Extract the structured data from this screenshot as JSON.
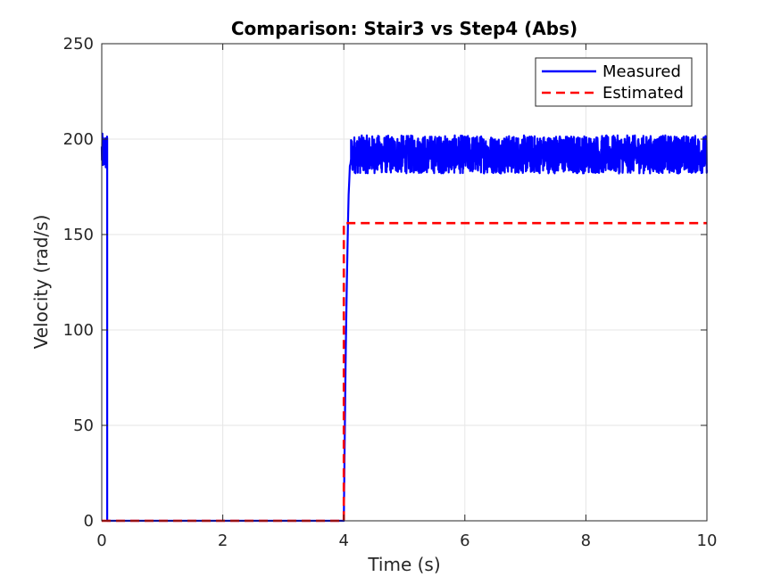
{
  "chart_data": {
    "type": "line",
    "title": "Comparison: Stair3 vs Step4 (Abs)",
    "xlabel": "Time (s)",
    "ylabel": "Velocity (rad/s)",
    "xlim": [
      0,
      10
    ],
    "ylim": [
      0,
      250
    ],
    "xticks": [
      0,
      2,
      4,
      6,
      8,
      10
    ],
    "yticks": [
      0,
      50,
      100,
      150,
      200,
      250
    ],
    "grid": true,
    "legend_position": "top-right",
    "series": [
      {
        "name": "Measured",
        "color": "#0000ff",
        "style": "solid",
        "segments": [
          {
            "x_start": 0.0,
            "x_end": 0.09,
            "mean": 193,
            "band": 10
          },
          {
            "x_start": 0.09,
            "x_end": 4.0,
            "value": 0
          },
          {
            "x_start": 4.0,
            "x_end": 4.12,
            "ramp_to": 190
          },
          {
            "x_start": 4.12,
            "x_end": 10.0,
            "mean": 192,
            "band": 10
          }
        ]
      },
      {
        "name": "Estimated",
        "color": "#ff0000",
        "style": "dashed",
        "x": [
          0,
          4.0,
          4.0,
          10
        ],
        "y": [
          0,
          0,
          156,
          156
        ]
      }
    ]
  }
}
